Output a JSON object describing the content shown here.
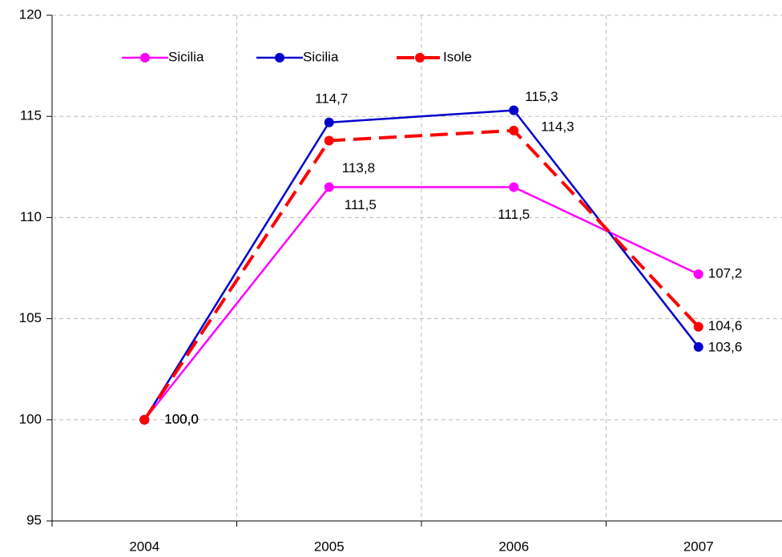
{
  "chart_data": {
    "type": "line",
    "categories": [
      "2004",
      "2005",
      "2006",
      "2007"
    ],
    "series": [
      {
        "name": "Sicilia",
        "color": "#ff00ff",
        "dashed": false,
        "values": [
          100.0,
          111.5,
          111.5,
          107.2
        ],
        "value_labels": [
          "100,0",
          "111,5",
          "111,5",
          "107,2"
        ]
      },
      {
        "name": "Sicilia",
        "color": "#0000cc",
        "dashed": false,
        "values": [
          100.0,
          114.7,
          115.3,
          103.6
        ],
        "value_labels": [
          "100,0",
          "114,7",
          "115,3",
          "103,6"
        ]
      },
      {
        "name": "Isole",
        "color": "#ff0000",
        "dashed": true,
        "values": [
          100.0,
          113.8,
          114.3,
          104.6
        ],
        "value_labels": [
          "100,0",
          "113,8",
          "114,3",
          "104,6"
        ]
      }
    ],
    "ylim": [
      95,
      120
    ],
    "yticks": [
      95,
      100,
      105,
      110,
      115,
      120
    ],
    "grid": true
  }
}
